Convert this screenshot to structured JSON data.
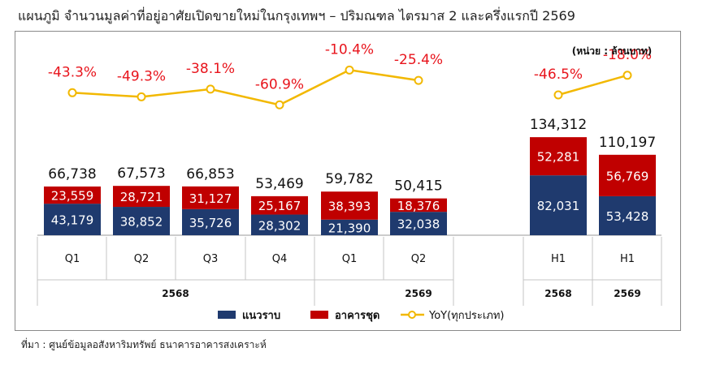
{
  "title": "แผนภูมิ จำนวนมูลค่าที่อยู่อาศัยเปิดขายใหม่ในกรุงเทพฯ – ปริมณฑล ไตรมาส 2 และครึ่งแรกปี 2569",
  "source": "ที่มา : ศูนย์ข้อมูลอสังหาริมทรัพย์ ธนาคารอาคารสงเคราะห์",
  "colors": {
    "house": "#1f3a6e",
    "condo": "#c00000",
    "yoy_line": "#f2b800",
    "yoy_text": "#e8141c"
  },
  "chart_data": {
    "type": "bar",
    "stacked": true,
    "unit_label": "(หน่วย : ล้านบาท)",
    "categories": [
      "Q1",
      "Q2",
      "Q3",
      "Q4",
      "Q1",
      "Q2",
      "H1",
      "H1"
    ],
    "groups": [
      {
        "label": "2568",
        "quarters": [
          "Q1",
          "Q2",
          "Q3",
          "Q4"
        ]
      },
      {
        "label": "2569",
        "quarters": [
          "Q1",
          "Q2"
        ]
      },
      {
        "label": "2568",
        "quarters": [
          "H1"
        ]
      },
      {
        "label": "2569",
        "quarters": [
          "H1"
        ]
      }
    ],
    "series": [
      {
        "name": "แนวราบ",
        "values": [
          43179,
          38852,
          35726,
          28302,
          21390,
          32038,
          82031,
          53428
        ]
      },
      {
        "name": "อาคารชุด",
        "values": [
          23559,
          28721,
          31127,
          25167,
          38393,
          18376,
          52281,
          56769
        ]
      }
    ],
    "value_labels": {
      "house": [
        "43,179",
        "38,852",
        "35,726",
        "28,302",
        "21,390",
        "32,038",
        "82,031",
        "53,428"
      ],
      "condo": [
        "23,559",
        "28,721",
        "31,127",
        "25,167",
        "38,393",
        "18,376",
        "52,281",
        "56,769"
      ],
      "totals": [
        "66,738",
        "67,573",
        "66,853",
        "53,469",
        "59,782",
        "50,415",
        "134,312",
        "110,197"
      ]
    },
    "totals": [
      66738,
      67573,
      66853,
      53469,
      59782,
      50415,
      134312,
      110197
    ],
    "yoy": {
      "name": "YoY(ทุกประเภท)",
      "values": [
        -43.3,
        -49.3,
        -38.1,
        -60.9,
        -10.4,
        -25.4,
        -46.5,
        -18.0
      ],
      "labels": [
        "-43.3%",
        "-49.3%",
        "-38.1%",
        "-60.9%",
        "-10.4%",
        "-25.4%",
        "-46.5%",
        "-18.0%"
      ],
      "line_segments": [
        [
          0,
          1,
          2,
          3,
          4,
          5
        ],
        [
          6,
          7
        ]
      ]
    },
    "legend": [
      "แนวราบ",
      "อาคารชุด",
      "YoY(ทุกประเภท)"
    ],
    "legend_position": "bottom"
  }
}
